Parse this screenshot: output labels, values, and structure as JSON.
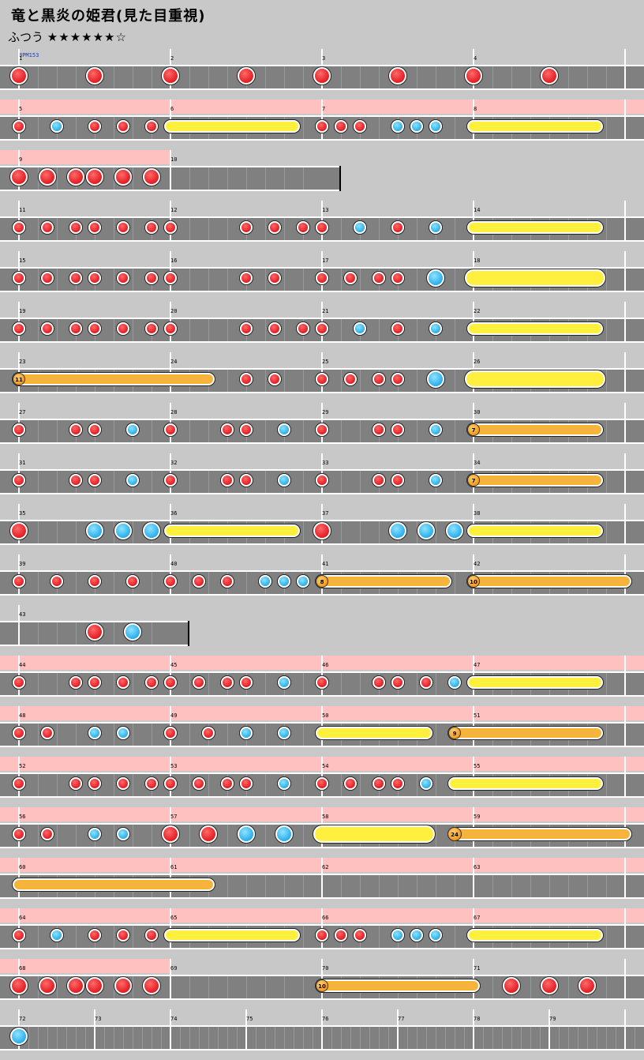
{
  "header": {
    "title": "竜と黒炎の姫君(見た目重視)",
    "difficulty_label": "ふつう",
    "stars": "★★★★★★☆"
  },
  "bpm_label": "BPM153",
  "rows": [
    {
      "measures": [
        1,
        2,
        3,
        4
      ],
      "width": 816,
      "gogo": 0,
      "notes": [
        [
          "d",
          0,
          "L"
        ],
        [
          "d",
          0.5,
          "L"
        ],
        [
          "d",
          1,
          "L"
        ],
        [
          "d",
          1.5,
          "L"
        ],
        [
          "d",
          2,
          "L"
        ],
        [
          "d",
          2.5,
          "L"
        ],
        [
          "d",
          3,
          "L"
        ],
        [
          "d",
          3.5,
          "L"
        ]
      ]
    },
    {
      "measures": [
        5,
        6,
        7,
        8
      ],
      "width": 816,
      "gogo": 816,
      "notes": [
        [
          "d",
          0
        ],
        [
          "k",
          0.25
        ],
        [
          "d",
          0.5
        ],
        [
          "d",
          0.6875
        ],
        [
          "d",
          0.875
        ],
        [
          "y",
          1,
          1.8125
        ],
        [
          "d",
          2
        ],
        [
          "d",
          2.125
        ],
        [
          "d",
          2.25
        ],
        [
          "k",
          2.5
        ],
        [
          "k",
          2.625
        ],
        [
          "k",
          2.75
        ],
        [
          "y",
          3,
          3.8125
        ]
      ]
    },
    {
      "measures": [
        9,
        10
      ],
      "width": 432,
      "gogo": 216,
      "notes": [
        [
          "d",
          0,
          "L"
        ],
        [
          "d",
          0.1875,
          "L"
        ],
        [
          "d",
          0.375,
          "L"
        ],
        [
          "d",
          0.5,
          "L"
        ],
        [
          "d",
          0.6875,
          "L"
        ],
        [
          "d",
          0.875,
          "L"
        ]
      ]
    },
    {
      "measures": [
        11,
        12,
        13,
        14
      ],
      "width": 816,
      "gogo": 0,
      "notes": [
        [
          "d",
          0
        ],
        [
          "d",
          0.1875
        ],
        [
          "d",
          0.375
        ],
        [
          "d",
          0.5
        ],
        [
          "d",
          0.6875
        ],
        [
          "d",
          0.875
        ],
        [
          "d",
          1
        ],
        [
          "d",
          1.5
        ],
        [
          "d",
          1.6875
        ],
        [
          "d",
          1.875
        ],
        [
          "d",
          2
        ],
        [
          "k",
          2.25
        ],
        [
          "d",
          2.5
        ],
        [
          "k",
          2.75
        ],
        [
          "y",
          3,
          3.8125
        ]
      ]
    },
    {
      "measures": [
        15,
        16,
        17,
        18
      ],
      "width": 816,
      "gogo": 0,
      "notes": [
        [
          "d",
          0
        ],
        [
          "d",
          0.1875
        ],
        [
          "d",
          0.375
        ],
        [
          "d",
          0.5
        ],
        [
          "d",
          0.6875
        ],
        [
          "d",
          0.875
        ],
        [
          "d",
          1
        ],
        [
          "d",
          1.5
        ],
        [
          "d",
          1.6875
        ],
        [
          "d",
          2
        ],
        [
          "d",
          2.1875
        ],
        [
          "d",
          2.375
        ],
        [
          "d",
          2.5
        ],
        [
          "k",
          2.75,
          "L"
        ],
        [
          "y",
          3,
          3.8125,
          "L"
        ]
      ]
    },
    {
      "measures": [
        19,
        20,
        21,
        22
      ],
      "width": 816,
      "gogo": 0,
      "notes": [
        [
          "d",
          0
        ],
        [
          "d",
          0.1875
        ],
        [
          "d",
          0.375
        ],
        [
          "d",
          0.5
        ],
        [
          "d",
          0.6875
        ],
        [
          "d",
          0.875
        ],
        [
          "d",
          1
        ],
        [
          "d",
          1.5
        ],
        [
          "d",
          1.6875
        ],
        [
          "d",
          1.875
        ],
        [
          "d",
          2
        ],
        [
          "k",
          2.25
        ],
        [
          "d",
          2.5
        ],
        [
          "k",
          2.75
        ],
        [
          "y",
          3,
          3.8125
        ]
      ]
    },
    {
      "measures": [
        23,
        24,
        25,
        26
      ],
      "width": 816,
      "gogo": 0,
      "notes": [
        [
          "b",
          0,
          1.25,
          "11"
        ],
        [
          "d",
          1.5
        ],
        [
          "d",
          1.6875
        ],
        [
          "d",
          2
        ],
        [
          "d",
          2.1875
        ],
        [
          "d",
          2.375
        ],
        [
          "d",
          2.5
        ],
        [
          "k",
          2.75,
          "L"
        ],
        [
          "y",
          3,
          3.8125,
          "L"
        ]
      ]
    },
    {
      "measures": [
        27,
        28,
        29,
        30
      ],
      "width": 816,
      "gogo": 0,
      "notes": [
        [
          "d",
          0
        ],
        [
          "d",
          0.375
        ],
        [
          "d",
          0.5
        ],
        [
          "k",
          0.75
        ],
        [
          "d",
          1
        ],
        [
          "d",
          1.375
        ],
        [
          "d",
          1.5
        ],
        [
          "k",
          1.75
        ],
        [
          "d",
          2
        ],
        [
          "d",
          2.375
        ],
        [
          "d",
          2.5
        ],
        [
          "k",
          2.75
        ],
        [
          "b",
          3,
          3.8125,
          "7"
        ]
      ]
    },
    {
      "measures": [
        31,
        32,
        33,
        34
      ],
      "width": 816,
      "gogo": 0,
      "notes": [
        [
          "d",
          0
        ],
        [
          "d",
          0.375
        ],
        [
          "d",
          0.5
        ],
        [
          "k",
          0.75
        ],
        [
          "d",
          1
        ],
        [
          "d",
          1.375
        ],
        [
          "d",
          1.5
        ],
        [
          "k",
          1.75
        ],
        [
          "d",
          2
        ],
        [
          "d",
          2.375
        ],
        [
          "d",
          2.5
        ],
        [
          "k",
          2.75
        ],
        [
          "b",
          3,
          3.8125,
          "7"
        ]
      ]
    },
    {
      "measures": [
        35,
        36,
        37,
        38
      ],
      "width": 816,
      "gogo": 0,
      "notes": [
        [
          "d",
          0,
          "L"
        ],
        [
          "k",
          0.5,
          "L"
        ],
        [
          "k",
          0.6875,
          "L"
        ],
        [
          "k",
          0.875,
          "L"
        ],
        [
          "y",
          1,
          1.8125
        ],
        [
          "d",
          2,
          "L"
        ],
        [
          "k",
          2.5,
          "L"
        ],
        [
          "k",
          2.6875,
          "L"
        ],
        [
          "k",
          2.875,
          "L"
        ],
        [
          "y",
          3,
          3.8125
        ]
      ]
    },
    {
      "measures": [
        39,
        40,
        41,
        42
      ],
      "width": 816,
      "gogo": 0,
      "notes": [
        [
          "d",
          0
        ],
        [
          "d",
          0.25
        ],
        [
          "d",
          0.5
        ],
        [
          "d",
          0.75
        ],
        [
          "d",
          1
        ],
        [
          "d",
          1.1875
        ],
        [
          "d",
          1.375
        ],
        [
          "k",
          1.625
        ],
        [
          "k",
          1.75
        ],
        [
          "k",
          1.875
        ],
        [
          "b",
          2,
          2.8125,
          "8"
        ],
        [
          "b",
          3,
          4,
          "10"
        ]
      ]
    },
    {
      "measures": [
        43
      ],
      "width": 240,
      "gogo": 0,
      "notes": [
        [
          "d",
          0.5,
          "L"
        ],
        [
          "k",
          0.75,
          "L"
        ]
      ]
    },
    {
      "measures": [
        44,
        45,
        46,
        47
      ],
      "width": 816,
      "gogo": 816,
      "notes": [
        [
          "d",
          0
        ],
        [
          "d",
          0.375
        ],
        [
          "d",
          0.5
        ],
        [
          "d",
          0.6875
        ],
        [
          "d",
          0.875
        ],
        [
          "d",
          1
        ],
        [
          "d",
          1.1875
        ],
        [
          "d",
          1.375
        ],
        [
          "d",
          1.5
        ],
        [
          "k",
          1.75
        ],
        [
          "d",
          2
        ],
        [
          "d",
          2.375
        ],
        [
          "d",
          2.5
        ],
        [
          "d",
          2.6875
        ],
        [
          "k",
          2.875
        ],
        [
          "y",
          3,
          3.8125
        ]
      ]
    },
    {
      "measures": [
        48,
        49,
        50,
        51
      ],
      "width": 816,
      "gogo": 816,
      "notes": [
        [
          "d",
          0
        ],
        [
          "d",
          0.1875
        ],
        [
          "k",
          0.5
        ],
        [
          "k",
          0.6875
        ],
        [
          "d",
          1
        ],
        [
          "d",
          1.25
        ],
        [
          "k",
          1.5
        ],
        [
          "k",
          1.75
        ],
        [
          "y",
          2,
          2.6875
        ],
        [
          "b",
          2.875,
          3.8125,
          "9"
        ]
      ]
    },
    {
      "measures": [
        52,
        53,
        54,
        55
      ],
      "width": 816,
      "gogo": 816,
      "notes": [
        [
          "d",
          0
        ],
        [
          "d",
          0.375
        ],
        [
          "d",
          0.5
        ],
        [
          "d",
          0.6875
        ],
        [
          "d",
          0.875
        ],
        [
          "d",
          1
        ],
        [
          "d",
          1.1875
        ],
        [
          "d",
          1.375
        ],
        [
          "d",
          1.5
        ],
        [
          "k",
          1.75
        ],
        [
          "d",
          2
        ],
        [
          "d",
          2.1875
        ],
        [
          "d",
          2.375
        ],
        [
          "d",
          2.5
        ],
        [
          "k",
          2.6875
        ],
        [
          "y",
          2.875,
          3.8125
        ]
      ]
    },
    {
      "measures": [
        56,
        57,
        58,
        59
      ],
      "width": 816,
      "gogo": 816,
      "notes": [
        [
          "d",
          0
        ],
        [
          "d",
          0.1875
        ],
        [
          "k",
          0.5
        ],
        [
          "k",
          0.6875
        ],
        [
          "d",
          1,
          "L"
        ],
        [
          "d",
          1.25,
          "L"
        ],
        [
          "k",
          1.5,
          "L"
        ],
        [
          "k",
          1.75,
          "L"
        ],
        [
          "y",
          2,
          2.6875,
          "L"
        ],
        [
          "b",
          2.875,
          4,
          "24"
        ]
      ]
    },
    {
      "measures": [
        60,
        61,
        62,
        63
      ],
      "width": 816,
      "gogo": 816,
      "notes": [
        [
          "o",
          0,
          1.25
        ]
      ]
    },
    {
      "measures": [
        64,
        65,
        66,
        67
      ],
      "width": 816,
      "gogo": 816,
      "notes": [
        [
          "d",
          0
        ],
        [
          "k",
          0.25
        ],
        [
          "d",
          0.5
        ],
        [
          "d",
          0.6875
        ],
        [
          "d",
          0.875
        ],
        [
          "y",
          1,
          1.8125
        ],
        [
          "d",
          2
        ],
        [
          "d",
          2.125
        ],
        [
          "d",
          2.25
        ],
        [
          "k",
          2.5
        ],
        [
          "k",
          2.625
        ],
        [
          "k",
          2.75
        ],
        [
          "y",
          3,
          3.8125
        ]
      ]
    },
    {
      "measures": [
        68,
        69,
        70,
        71
      ],
      "width": 816,
      "gogo": 216,
      "notes": [
        [
          "d",
          0,
          "L"
        ],
        [
          "d",
          0.1875,
          "L"
        ],
        [
          "d",
          0.375,
          "L"
        ],
        [
          "d",
          0.5,
          "L"
        ],
        [
          "d",
          0.6875,
          "L"
        ],
        [
          "d",
          0.875,
          "L"
        ],
        [
          "b",
          2,
          3,
          "10"
        ],
        [
          "d",
          3.25,
          "L"
        ],
        [
          "d",
          3.5,
          "L"
        ],
        [
          "d",
          3.75,
          "L"
        ]
      ]
    },
    {
      "measures": [
        72,
        73,
        74,
        75,
        76,
        77,
        78,
        79
      ],
      "width": 816,
      "gogo": 0,
      "half": true,
      "notes": [
        [
          "k",
          0,
          "L"
        ]
      ]
    }
  ]
}
